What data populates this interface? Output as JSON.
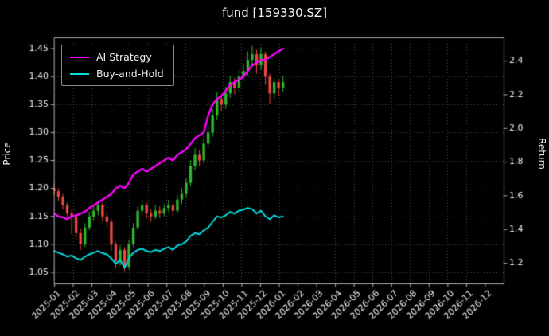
{
  "title": "fund [159330.SZ]",
  "legend": {
    "items": [
      {
        "label": "AI Strategy",
        "color": "#ff00ff"
      },
      {
        "label": "Buy-and-Hold",
        "color": "#00dde0"
      }
    ]
  },
  "axes": {
    "x": {
      "lim": [
        0,
        24
      ],
      "tick_positions": [
        0,
        1,
        2,
        3,
        4,
        5,
        6,
        7,
        8,
        9,
        10,
        11,
        12,
        13,
        14,
        15,
        16,
        17,
        18,
        19,
        20,
        21,
        22,
        23
      ],
      "tick_labels": [
        "2025-01",
        "2025-02",
        "2025-03",
        "2025-04",
        "2025-05",
        "2025-06",
        "2025-07",
        "2025-08",
        "2025-09",
        "2025-10",
        "2025-11",
        "2025-12",
        "2026-01",
        "2026-02",
        "2026-03",
        "2026-04",
        "2026-05",
        "2026-06",
        "2026-07",
        "2026-08",
        "2026-09",
        "2026-10",
        "2026-11",
        "2026-12"
      ]
    },
    "left": {
      "label": "Price",
      "lim": [
        1.03,
        1.47
      ],
      "ticks": [
        1.05,
        1.1,
        1.15,
        1.2,
        1.25,
        1.3,
        1.35,
        1.4,
        1.45
      ]
    },
    "right": {
      "label": "Return",
      "lim": [
        1.08,
        2.54
      ],
      "ticks": [
        1.2,
        1.4,
        1.6,
        1.8,
        2.0,
        2.2,
        2.4
      ]
    }
  },
  "colors": {
    "background": "#000000",
    "grid": "#4d4d4d",
    "frame": "#b0b0b0",
    "text": "#eaeaea",
    "candle_up": "#2eb82e",
    "candle_down": "#e8483f",
    "ai_line": "#ff00ff",
    "bh_line": "#00dde0"
  },
  "chart_data": {
    "type": "candlestick+line",
    "title": "fund [159330.SZ]",
    "xlabel": "",
    "ylabel_left": "Price",
    "ylabel_right": "Return",
    "x_months": [
      0,
      0.235,
      0.47,
      0.705,
      0.94,
      1.175,
      1.41,
      1.645,
      1.88,
      2.115,
      2.35,
      2.585,
      2.82,
      3.055,
      3.29,
      3.525,
      3.76,
      3.995,
      4.23,
      4.465,
      4.7,
      4.935,
      5.17,
      5.405,
      5.64,
      5.875,
      6.11,
      6.345,
      6.58,
      6.815,
      7.05,
      7.285,
      7.52,
      7.755,
      7.99,
      8.225,
      8.46,
      8.695,
      8.93,
      9.165,
      9.4,
      9.635,
      9.87,
      10.105,
      10.34,
      10.575,
      10.81,
      11.045,
      11.28,
      11.515,
      11.75,
      11.985,
      12.22
    ],
    "candles_ohlc": [
      [
        1.2,
        1.21,
        1.188,
        1.195
      ],
      [
        1.195,
        1.2,
        1.178,
        1.185
      ],
      [
        1.185,
        1.19,
        1.162,
        1.17
      ],
      [
        1.17,
        1.175,
        1.148,
        1.155
      ],
      [
        1.155,
        1.162,
        1.118,
        1.15
      ],
      [
        1.15,
        1.152,
        1.108,
        1.12
      ],
      [
        1.12,
        1.128,
        1.09,
        1.1
      ],
      [
        1.1,
        1.138,
        1.095,
        1.13
      ],
      [
        1.13,
        1.158,
        1.125,
        1.15
      ],
      [
        1.15,
        1.168,
        1.143,
        1.16
      ],
      [
        1.16,
        1.178,
        1.152,
        1.17
      ],
      [
        1.17,
        1.175,
        1.142,
        1.15
      ],
      [
        1.15,
        1.158,
        1.132,
        1.14
      ],
      [
        1.14,
        1.145,
        1.088,
        1.1
      ],
      [
        1.1,
        1.105,
        1.058,
        1.07
      ],
      [
        1.07,
        1.098,
        1.062,
        1.09
      ],
      [
        1.09,
        1.095,
        1.052,
        1.06
      ],
      [
        1.06,
        1.108,
        1.055,
        1.1
      ],
      [
        1.1,
        1.138,
        1.095,
        1.13
      ],
      [
        1.13,
        1.168,
        1.125,
        1.16
      ],
      [
        1.16,
        1.18,
        1.152,
        1.17
      ],
      [
        1.17,
        1.175,
        1.146,
        1.155
      ],
      [
        1.155,
        1.162,
        1.14,
        1.15
      ],
      [
        1.15,
        1.17,
        1.145,
        1.16
      ],
      [
        1.16,
        1.168,
        1.147,
        1.155
      ],
      [
        1.155,
        1.172,
        1.15,
        1.165
      ],
      [
        1.165,
        1.18,
        1.158,
        1.17
      ],
      [
        1.17,
        1.176,
        1.15,
        1.16
      ],
      [
        1.16,
        1.188,
        1.155,
        1.18
      ],
      [
        1.18,
        1.2,
        1.172,
        1.19
      ],
      [
        1.19,
        1.218,
        1.183,
        1.21
      ],
      [
        1.21,
        1.25,
        1.205,
        1.24
      ],
      [
        1.24,
        1.272,
        1.232,
        1.26
      ],
      [
        1.26,
        1.268,
        1.24,
        1.25
      ],
      [
        1.25,
        1.29,
        1.245,
        1.28
      ],
      [
        1.28,
        1.312,
        1.272,
        1.3
      ],
      [
        1.3,
        1.342,
        1.292,
        1.33
      ],
      [
        1.33,
        1.372,
        1.322,
        1.36
      ],
      [
        1.36,
        1.368,
        1.338,
        1.35
      ],
      [
        1.35,
        1.382,
        1.342,
        1.37
      ],
      [
        1.37,
        1.402,
        1.362,
        1.39
      ],
      [
        1.39,
        1.398,
        1.368,
        1.38
      ],
      [
        1.38,
        1.412,
        1.372,
        1.4
      ],
      [
        1.4,
        1.422,
        1.392,
        1.41
      ],
      [
        1.41,
        1.445,
        1.402,
        1.43
      ],
      [
        1.43,
        1.455,
        1.42,
        1.44
      ],
      [
        1.44,
        1.448,
        1.405,
        1.42
      ],
      [
        1.42,
        1.452,
        1.412,
        1.44
      ],
      [
        1.44,
        1.445,
        1.385,
        1.4
      ],
      [
        1.4,
        1.405,
        1.352,
        1.37
      ],
      [
        1.37,
        1.398,
        1.358,
        1.39
      ],
      [
        1.39,
        1.395,
        1.365,
        1.38
      ],
      [
        1.38,
        1.4,
        1.372,
        1.39
      ]
    ],
    "series": [
      {
        "name": "AI Strategy",
        "axis": "left",
        "color": "#ff00ff",
        "width": 2.4,
        "values": [
          1.155,
          1.15,
          1.148,
          1.145,
          1.15,
          1.152,
          1.155,
          1.158,
          1.165,
          1.17,
          1.175,
          1.18,
          1.185,
          1.19,
          1.2,
          1.205,
          1.2,
          1.21,
          1.225,
          1.23,
          1.235,
          1.23,
          1.235,
          1.24,
          1.245,
          1.25,
          1.255,
          1.25,
          1.26,
          1.265,
          1.27,
          1.28,
          1.29,
          1.295,
          1.3,
          1.33,
          1.35,
          1.36,
          1.365,
          1.375,
          1.385,
          1.39,
          1.395,
          1.4,
          1.41,
          1.42,
          1.425,
          1.43,
          1.43,
          1.435,
          1.44,
          1.445,
          1.45
        ]
      },
      {
        "name": "Buy-and-Hold",
        "axis": "left",
        "color": "#00dde0",
        "width": 2.0,
        "values": [
          1.088,
          1.085,
          1.082,
          1.078,
          1.08,
          1.075,
          1.072,
          1.078,
          1.082,
          1.085,
          1.088,
          1.084,
          1.082,
          1.075,
          1.065,
          1.072,
          1.058,
          1.075,
          1.085,
          1.09,
          1.092,
          1.088,
          1.086,
          1.09,
          1.088,
          1.092,
          1.095,
          1.09,
          1.098,
          1.1,
          1.105,
          1.115,
          1.12,
          1.118,
          1.125,
          1.13,
          1.14,
          1.15,
          1.148,
          1.152,
          1.158,
          1.155,
          1.16,
          1.162,
          1.165,
          1.163,
          1.155,
          1.16,
          1.15,
          1.145,
          1.152,
          1.148,
          1.15
        ]
      }
    ],
    "legend_position": "upper left",
    "grid": true
  }
}
